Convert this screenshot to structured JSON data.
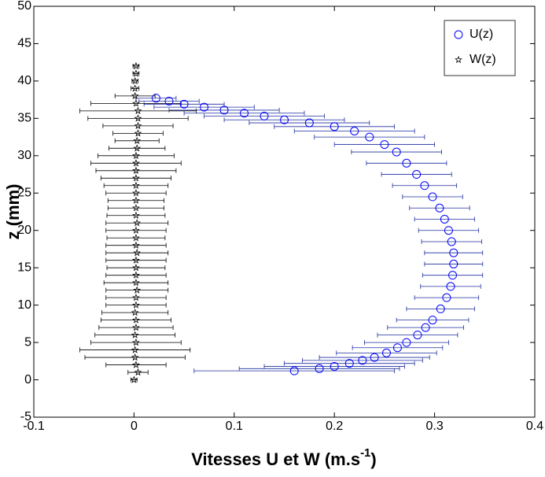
{
  "chart_data": {
    "type": "errorbar-scatter",
    "xlabel": {
      "text": "Vitesses U et W (m.s",
      "superscript": "-1",
      "suffix": ")"
    },
    "ylabel": "z (mm)",
    "xlim": [
      -0.1,
      0.4
    ],
    "xticks": [
      -0.1,
      0,
      0.1,
      0.2,
      0.3,
      0.4
    ],
    "ylim": [
      -5,
      50
    ],
    "yticks": [
      -5,
      0,
      5,
      10,
      15,
      20,
      25,
      30,
      35,
      40,
      45,
      50
    ],
    "legend": "upper right",
    "series": [
      {
        "name": "U(z)",
        "color": "#0000ff",
        "bar_color": "#1f2f9f",
        "marker": "circle",
        "x": [
          0.16,
          0.185,
          0.2,
          0.215,
          0.228,
          0.24,
          0.252,
          0.263,
          0.272,
          0.283,
          0.291,
          0.298,
          0.306,
          0.312,
          0.316,
          0.318,
          0.319,
          0.319,
          0.317,
          0.314,
          0.31,
          0.305,
          0.298,
          0.29,
          0.282,
          0.272,
          0.262,
          0.25,
          0.235,
          0.22,
          0.2,
          0.175,
          0.15,
          0.13,
          0.11,
          0.09,
          0.07,
          0.05,
          0.035,
          0.022
        ],
        "y": [
          1.2,
          1.5,
          1.8,
          2.2,
          2.6,
          3.0,
          3.6,
          4.3,
          5.0,
          6.0,
          7.0,
          8.0,
          9.5,
          11,
          12.5,
          14,
          15.5,
          17,
          18.5,
          20,
          21.5,
          23,
          24.5,
          26,
          27.5,
          29,
          30.5,
          31.5,
          32.5,
          33.3,
          33.9,
          34.4,
          34.8,
          35.3,
          35.7,
          36.1,
          36.5,
          36.9,
          37.3,
          37.7
        ],
        "xerr": [
          0.1,
          0.08,
          0.07,
          0.065,
          0.06,
          0.055,
          0.05,
          0.045,
          0.042,
          0.04,
          0.038,
          0.036,
          0.034,
          0.032,
          0.03,
          0.03,
          0.029,
          0.029,
          0.03,
          0.03,
          0.03,
          0.03,
          0.03,
          0.032,
          0.035,
          0.04,
          0.045,
          0.05,
          0.055,
          0.06,
          0.06,
          0.06,
          0.06,
          0.06,
          0.06,
          0.055,
          0.05,
          0.04,
          0.03,
          0.02
        ]
      },
      {
        "name": "W(z)",
        "color": "#000000",
        "bar_color": "#000000",
        "marker": "star",
        "x": [
          0,
          0.004,
          0.002,
          0.001,
          0.001,
          0.002,
          0.001,
          0.002,
          0.002,
          0.001,
          0.002,
          0.002,
          0.003,
          0.002,
          0.002,
          0.002,
          0.002,
          0.003,
          0.002,
          0.002,
          0.002,
          0.003,
          0.002,
          0.002,
          0.002,
          0.002,
          0.002,
          0.002,
          0.002,
          0.002,
          0.002,
          0.003,
          0.003,
          0.004,
          0.004,
          0.004,
          0.004,
          0.002,
          0.001,
          0.001,
          0.001,
          0.002,
          0.002
        ],
        "y": [
          0,
          1,
          2,
          3,
          4,
          5,
          6,
          7,
          8,
          9,
          10,
          11,
          12,
          13,
          14,
          15,
          16,
          17,
          18,
          19,
          20,
          21,
          22,
          23,
          24,
          25,
          26,
          27,
          28,
          29,
          30,
          31,
          32,
          33,
          34,
          35,
          36,
          37,
          38,
          39,
          40,
          41,
          42
        ],
        "xerr": [
          0.003,
          0.01,
          0.03,
          0.05,
          0.055,
          0.045,
          0.04,
          0.037,
          0.035,
          0.033,
          0.03,
          0.03,
          0.031,
          0.032,
          0.03,
          0.029,
          0.03,
          0.031,
          0.03,
          0.029,
          0.03,
          0.031,
          0.029,
          0.028,
          0.028,
          0.03,
          0.032,
          0.035,
          0.04,
          0.045,
          0.038,
          0.028,
          0.022,
          0.025,
          0.035,
          0.05,
          0.058,
          0.045,
          0.02,
          0.004,
          0.003,
          0.003,
          0.003
        ]
      }
    ]
  }
}
